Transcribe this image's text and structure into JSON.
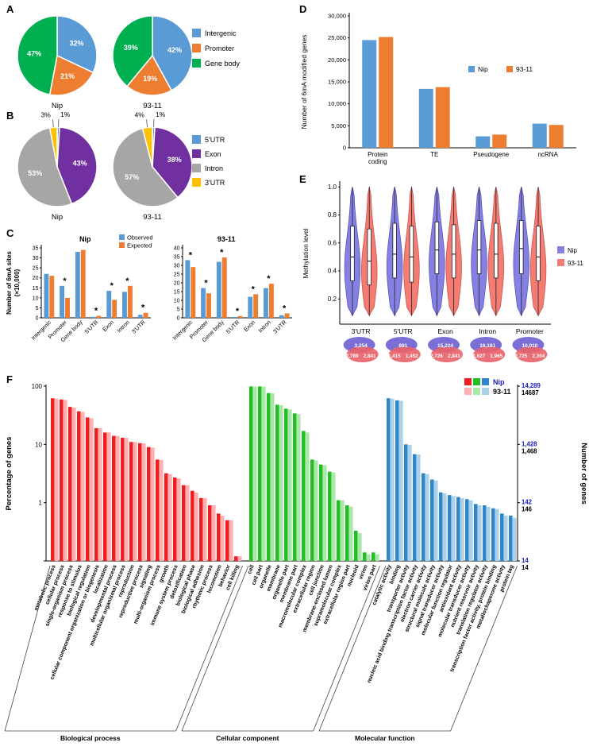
{
  "panels": {
    "a": {
      "letter": "A"
    },
    "b": {
      "letter": "B"
    },
    "c": {
      "letter": "C"
    },
    "d": {
      "letter": "D"
    },
    "e": {
      "letter": "E"
    },
    "f": {
      "letter": "F"
    }
  },
  "chart_data": [
    {
      "panel": "A",
      "type": "pie",
      "legend": [
        {
          "label": "Intergenic",
          "color": "#5B9BD5"
        },
        {
          "label": "Promoter",
          "color": "#ED7D31"
        },
        {
          "label": "Gene body",
          "color": "#00B050"
        }
      ],
      "pies": [
        {
          "name": "Nip",
          "slices": [
            {
              "label": "Intergenic",
              "pct": 32,
              "color": "#5B9BD5"
            },
            {
              "label": "Promoter",
              "pct": 21,
              "color": "#ED7D31"
            },
            {
              "label": "Gene body",
              "pct": 47,
              "color": "#00B050"
            }
          ]
        },
        {
          "name": "93-11",
          "slices": [
            {
              "label": "Intergenic",
              "pct": 42,
              "color": "#5B9BD5"
            },
            {
              "label": "Promoter",
              "pct": 19,
              "color": "#ED7D31"
            },
            {
              "label": "Gene body",
              "pct": 39,
              "color": "#00B050"
            }
          ]
        }
      ]
    },
    {
      "panel": "B",
      "type": "pie",
      "legend": [
        {
          "label": "5'UTR",
          "color": "#5B9BD5"
        },
        {
          "label": "Exon",
          "color": "#7030A0"
        },
        {
          "label": "Intron",
          "color": "#A6A6A6"
        },
        {
          "label": "3'UTR",
          "color": "#FFC000"
        }
      ],
      "pies": [
        {
          "name": "Nip",
          "slices": [
            {
              "label": "5'UTR",
              "pct": 1,
              "color": "#5B9BD5"
            },
            {
              "label": "Exon",
              "pct": 43,
              "color": "#7030A0"
            },
            {
              "label": "Intron",
              "pct": 53,
              "color": "#A6A6A6"
            },
            {
              "label": "3'UTR",
              "pct": 3,
              "color": "#FFC000"
            }
          ]
        },
        {
          "name": "93-11",
          "slices": [
            {
              "label": "5'UTR",
              "pct": 1,
              "color": "#5B9BD5"
            },
            {
              "label": "Exon",
              "pct": 38,
              "color": "#7030A0"
            },
            {
              "label": "Intron",
              "pct": 57,
              "color": "#A6A6A6"
            },
            {
              "label": "3'UTR",
              "pct": 4,
              "color": "#FFC000"
            }
          ]
        }
      ]
    },
    {
      "panel": "C",
      "type": "bar",
      "subtype": "grouped-observed-vs-expected",
      "ylabel": [
        "Number of 6mA sites",
        "(×10,000)"
      ],
      "series_legend": [
        {
          "label": "Observed",
          "color": "#5B9BD5"
        },
        {
          "label": "Expected",
          "color": "#ED7D31"
        }
      ],
      "charts": [
        {
          "title": "Nip",
          "ylim": [
            0,
            35
          ],
          "ytick_step": 5,
          "categories": [
            "Intergenic",
            "Promoter",
            "Gene body",
            "5'UTR",
            "Exon",
            "Intron",
            "3'UTR"
          ],
          "observed": [
            22,
            16,
            33,
            0.5,
            13.5,
            13,
            1.5
          ],
          "expected": [
            21,
            10,
            34,
            1,
            9,
            16,
            2.5
          ],
          "stars": [
            false,
            true,
            false,
            true,
            true,
            true,
            true
          ]
        },
        {
          "title": "93-11",
          "ylim": [
            0,
            40
          ],
          "ytick_step": 5,
          "categories": [
            "Intergenic",
            "Promoter",
            "Gene body",
            "5'UTR",
            "Exon",
            "Intron",
            "3'UTR"
          ],
          "observed": [
            33,
            17,
            32,
            0.5,
            12,
            17,
            1.5
          ],
          "expected": [
            29,
            14,
            34.5,
            1,
            13.5,
            19.5,
            2.5
          ],
          "stars": [
            true,
            true,
            true,
            true,
            true,
            true,
            true
          ]
        }
      ]
    },
    {
      "panel": "D",
      "type": "bar",
      "ylabel": "Number of 6mA modified genes",
      "ylim": [
        0,
        30000
      ],
      "ytick_step": 5000,
      "categories": [
        "Protein coding",
        "TE",
        "Pseudogene",
        "ncRNA"
      ],
      "series": [
        {
          "name": "Nip",
          "color": "#5B9BD5",
          "values": [
            24500,
            13400,
            2600,
            5500
          ]
        },
        {
          "name": "93-11",
          "color": "#ED7D31",
          "values": [
            25200,
            13800,
            3000,
            5200
          ]
        }
      ]
    },
    {
      "panel": "E",
      "type": "violin",
      "ylabel": "Methylation level",
      "yticks": [
        0.2,
        0.4,
        0.6,
        0.8,
        1.0
      ],
      "categories": [
        "3'UTR",
        "5'UTR",
        "Exon",
        "Intron",
        "Promoter"
      ],
      "series": [
        {
          "name": "Nip",
          "color": "#8580E2",
          "edge": "#5B55C0"
        },
        {
          "name": "93-11",
          "color": "#F47C72",
          "edge": "#C85A54"
        }
      ],
      "stats": [
        [
          {
            "lo": 0.08,
            "q1": 0.33,
            "med": 0.5,
            "q3": 0.72,
            "hi": 1.0,
            "mode": 0.42
          },
          {
            "lo": 0.08,
            "q1": 0.3,
            "med": 0.47,
            "q3": 0.7,
            "hi": 1.0,
            "mode": 0.4
          }
        ],
        [
          {
            "lo": 0.08,
            "q1": 0.35,
            "med": 0.52,
            "q3": 0.74,
            "hi": 1.0,
            "mode": 0.43
          },
          {
            "lo": 0.08,
            "q1": 0.32,
            "med": 0.5,
            "q3": 0.72,
            "hi": 1.0,
            "mode": 0.41
          }
        ],
        [
          {
            "lo": 0.08,
            "q1": 0.38,
            "med": 0.55,
            "q3": 0.75,
            "hi": 1.0,
            "mode": 0.45
          },
          {
            "lo": 0.08,
            "q1": 0.35,
            "med": 0.52,
            "q3": 0.73,
            "hi": 1.0,
            "mode": 0.43
          }
        ],
        [
          {
            "lo": 0.08,
            "q1": 0.38,
            "med": 0.55,
            "q3": 0.76,
            "hi": 1.0,
            "mode": 0.45
          },
          {
            "lo": 0.08,
            "q1": 0.35,
            "med": 0.52,
            "q3": 0.74,
            "hi": 1.0,
            "mode": 0.43
          }
        ],
        [
          {
            "lo": 0.08,
            "q1": 0.38,
            "med": 0.56,
            "q3": 0.76,
            "hi": 1.0,
            "mode": 0.45
          },
          {
            "lo": 0.08,
            "q1": 0.33,
            "med": 0.5,
            "q3": 0.72,
            "hi": 1.0,
            "mode": 0.41
          }
        ]
      ],
      "venn_colors": {
        "top_ellipse": "#7A6FD6",
        "bottom_ellipse": "#E8636B"
      },
      "venn": [
        {
          "category": "3'UTR",
          "top": "3,254",
          "left": "2,789",
          "right": "2,841"
        },
        {
          "category": "5'UTR",
          "top": "891",
          "left": "1,415",
          "right": "1,452"
        },
        {
          "category": "Exon",
          "top": "15,224",
          "left": "2,726",
          "right": "2,841"
        },
        {
          "category": "Intron",
          "top": "16,181",
          "left": "1,627",
          "right": "1,965"
        },
        {
          "category": "Promoter",
          "top": "10,010",
          "left": "2,725",
          "right": "2,304"
        }
      ]
    },
    {
      "panel": "F",
      "type": "bar",
      "subtype": "go-classification",
      "yscale": "log",
      "ylim": [
        0.1,
        100
      ],
      "ylabel_left": "Percentage of genes",
      "ylabel_right": "Number of genes",
      "left_ticks": [
        100,
        10,
        1
      ],
      "right_tick_values": [
        100,
        10,
        1,
        0.1
      ],
      "right_ticks": [
        {
          "nip": "14,289",
          "other": "14687"
        },
        {
          "nip": "1,428",
          "other": "1,468"
        },
        {
          "nip": "142",
          "other": "146"
        },
        {
          "nip": "14",
          "other": "14"
        }
      ],
      "legend": {
        "nip_label": "Nip",
        "other_label": "93-11",
        "nip_colors": [
          "#F01E1E",
          "#22BE22",
          "#2E86C8"
        ],
        "other_colors": [
          "#FFAFAF",
          "#A9E8A9",
          "#ABD0EA"
        ],
        "nip_text_color": "#1B1BBE"
      },
      "groups": [
        {
          "name": "Biological process",
          "nip_color": "#F01E1E",
          "other_color": "#FFAFAF",
          "categories": [
            "metabolic process",
            "cellular process",
            "single-organism process",
            "response to stimulus",
            "biological regulation",
            "cellular component organization or biogenesis",
            "localization",
            "developmental process",
            "multicellular organismal process",
            "reproduction",
            "reproductive process",
            "signaling",
            "multi-organism process",
            "growth",
            "immune system process",
            "detoxification",
            "biological phase",
            "biological adhesion",
            "rhythmic process",
            "locomotion",
            "behavior",
            "cell killing"
          ],
          "nip": [
            62,
            59,
            44,
            37,
            29,
            19,
            16,
            14,
            13,
            11,
            10.5,
            9,
            5.5,
            3.2,
            2.7,
            2.0,
            1.6,
            1.2,
            0.9,
            0.65,
            0.5,
            0.12
          ],
          "other": [
            61,
            58,
            43,
            36,
            28,
            19,
            16,
            14,
            13,
            11,
            10.4,
            8.8,
            5.4,
            3.1,
            2.6,
            2.0,
            1.5,
            1.2,
            0.9,
            0.6,
            0.5,
            0.12
          ]
        },
        {
          "name": "Cellular component",
          "nip_color": "#22BE22",
          "other_color": "#A9E8A9",
          "categories": [
            "cell",
            "cell part",
            "organelle",
            "membrane",
            "organelle part",
            "membrane part",
            "macromolecular complex",
            "extracellular region",
            "cell junction",
            "membrane-enclosed lumen",
            "supramolecular complex",
            "extracellular region part",
            "nucleoid",
            "virion",
            "virion part"
          ],
          "nip": [
            99,
            99,
            76,
            48,
            41,
            34,
            17,
            5.5,
            4.5,
            3.4,
            1.1,
            0.9,
            0.33,
            0.14,
            0.14
          ],
          "other": [
            98,
            98,
            75,
            47,
            40,
            33,
            16,
            5.3,
            4.4,
            3.3,
            1.1,
            0.85,
            0.3,
            0.13,
            0.13
          ]
        },
        {
          "name": "Molecular function",
          "nip_color": "#2E86C8",
          "other_color": "#ABD0EA",
          "categories": [
            "catalytic activity",
            "binding",
            "transporter activity",
            "nucleic acid binding transcription factor activity",
            "electron carrier activity",
            "structural molecule activity",
            "signal transducer activity",
            "molecular function regulator",
            "antioxidant activity",
            "molecular transducer activity",
            "nutrient reservoir activity",
            "translation regulator activity",
            "transcription factor activity, protein binding",
            "metallochaperone activity",
            "protein tag"
          ],
          "nip": [
            62,
            57,
            10,
            6.8,
            3.2,
            2.5,
            1.5,
            1.35,
            1.25,
            1.15,
            0.95,
            0.9,
            0.8,
            0.65,
            0.6
          ],
          "other": [
            61,
            56,
            9.8,
            6.7,
            3.1,
            2.4,
            1.45,
            1.3,
            1.2,
            1.1,
            0.9,
            0.85,
            0.78,
            0.6,
            0.55
          ]
        }
      ]
    }
  ]
}
